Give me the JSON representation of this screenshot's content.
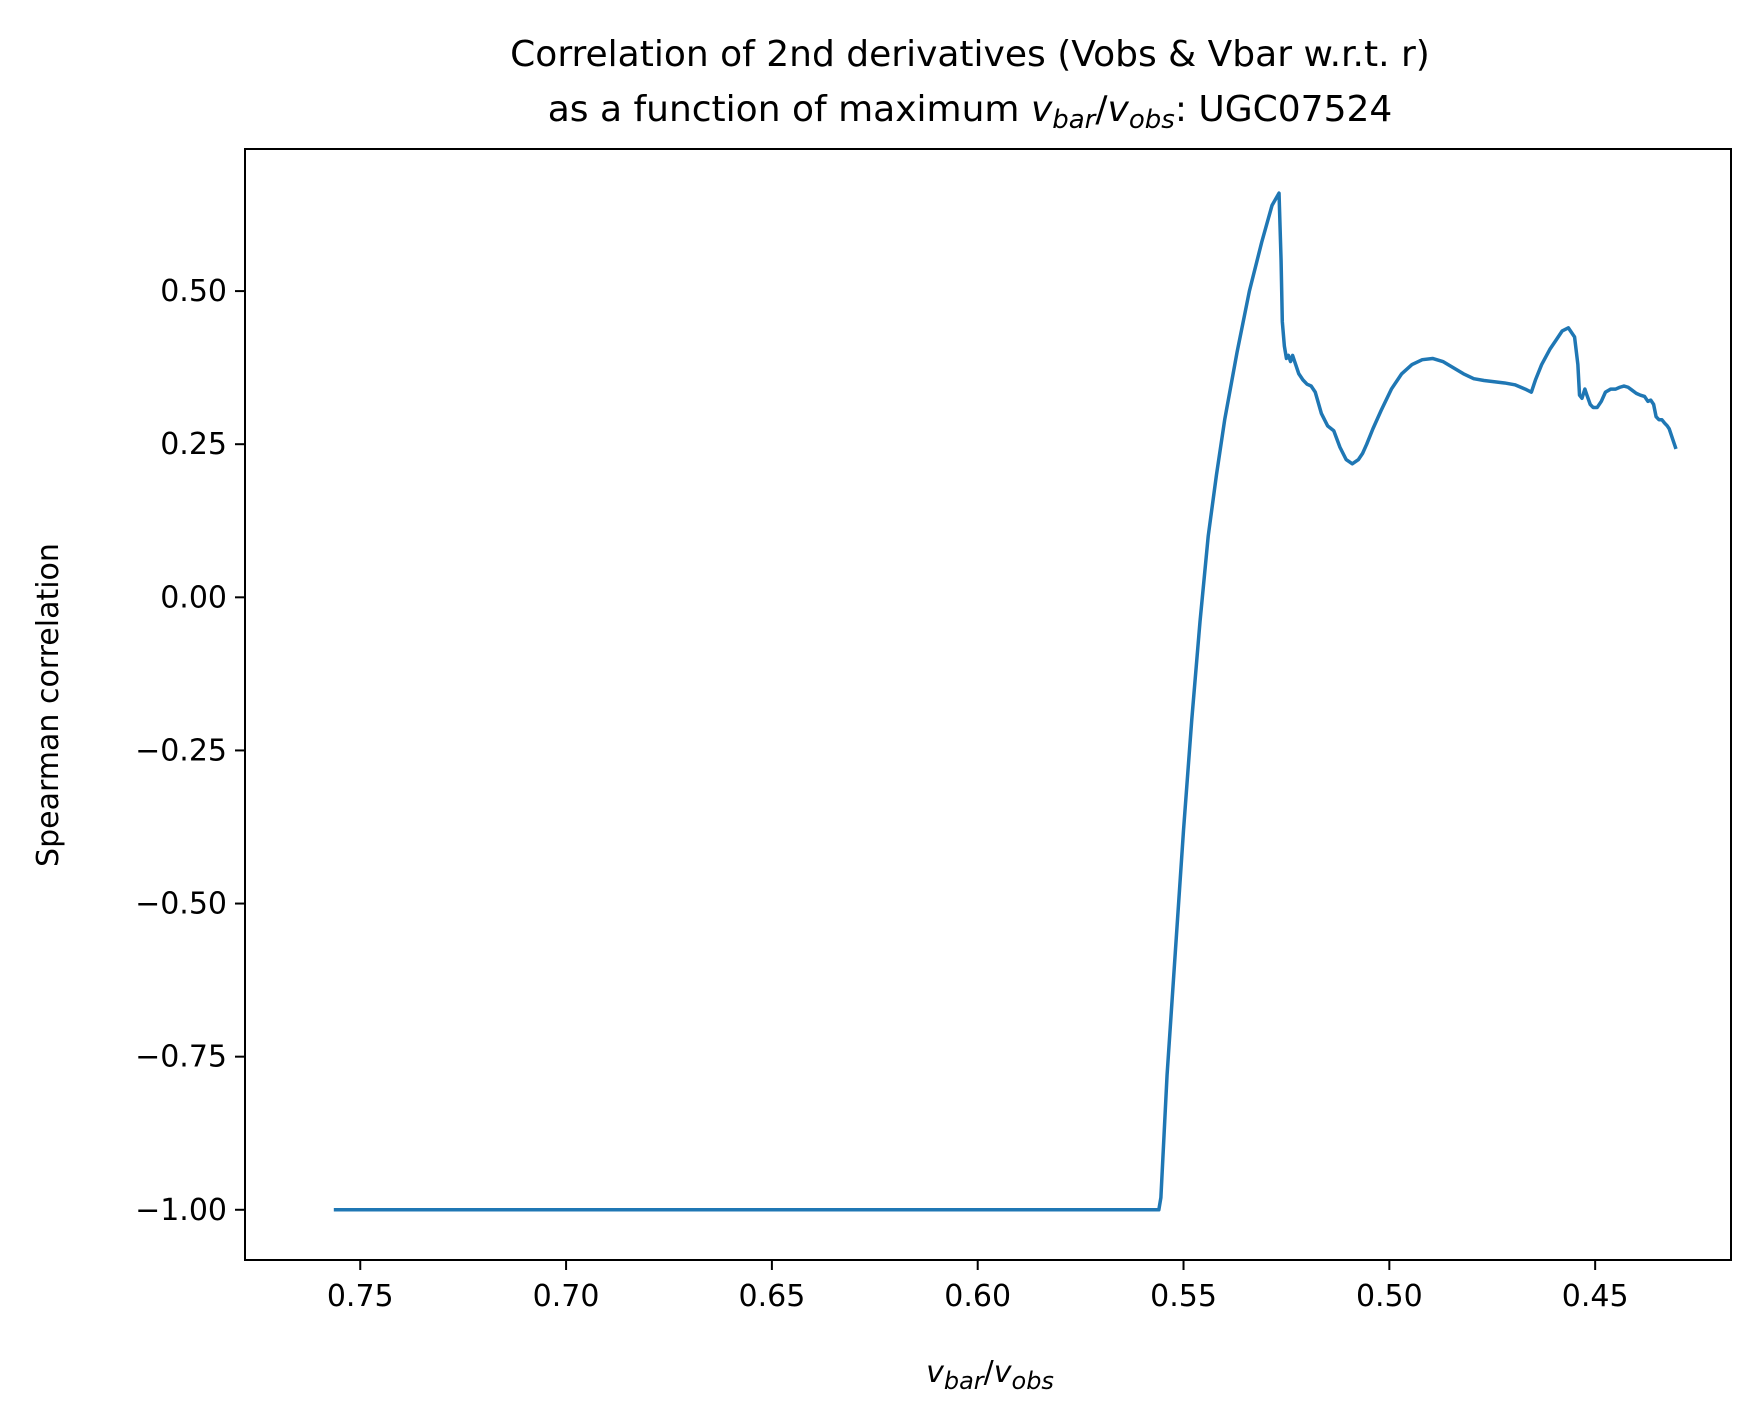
{
  "chart_data": {
    "type": "line",
    "title_line1": "Correlation of 2nd derivatives (Vobs & Vbar w.r.t. r)",
    "title_line2_prefix": "as a function of maximum ",
    "title_line2_suffix": ": UGC07524",
    "xlabel": "v_bar/v_obs",
    "ylabel": "Spearman correlation",
    "xlim": [
      0.778,
      0.417
    ],
    "ylim": [
      -1.082,
      0.732
    ],
    "x_inverted": true,
    "grid": false,
    "line_color": "#1f77b4",
    "xticks": [
      0.75,
      0.7,
      0.65,
      0.6,
      0.55,
      0.5,
      0.45
    ],
    "xtick_labels": [
      "0.75",
      "0.70",
      "0.65",
      "0.60",
      "0.55",
      "0.50",
      "0.45"
    ],
    "yticks": [
      0.5,
      0.25,
      0.0,
      -0.25,
      -0.5,
      -0.75,
      -1.0
    ],
    "ytick_labels": [
      "0.50",
      "0.25",
      "0.00",
      "−0.25",
      "−0.50",
      "−0.75",
      "−1.00"
    ],
    "series": [
      {
        "x": [
          0.756,
          0.7,
          0.65,
          0.6,
          0.556,
          0.5555,
          0.554,
          0.552,
          0.55,
          0.548,
          0.546,
          0.544,
          0.542,
          0.54,
          0.537,
          0.534,
          0.531,
          0.5285,
          0.5268,
          0.5263,
          0.526,
          0.5255,
          0.525,
          0.5245,
          0.524,
          0.5235,
          0.523,
          0.522,
          0.521,
          0.52,
          0.519,
          0.518,
          0.5165,
          0.515,
          0.5135,
          0.512,
          0.5105,
          0.509,
          0.5075,
          0.5065,
          0.5055,
          0.504,
          0.502,
          0.4995,
          0.497,
          0.4945,
          0.492,
          0.4895,
          0.487,
          0.4845,
          0.482,
          0.4795,
          0.477,
          0.4745,
          0.472,
          0.4695,
          0.467,
          0.4655,
          0.4645,
          0.463,
          0.461,
          0.4595,
          0.458,
          0.4565,
          0.455,
          0.4542,
          0.4538,
          0.4532,
          0.4525,
          0.452,
          0.4512,
          0.4505,
          0.4495,
          0.4485,
          0.4475,
          0.4462,
          0.445,
          0.444,
          0.443,
          0.442,
          0.441,
          0.44,
          0.439,
          0.438,
          0.4372,
          0.4365,
          0.4358,
          0.4352,
          0.4345,
          0.4338,
          0.4332,
          0.4325,
          0.432,
          0.4315,
          0.431,
          0.4305
        ],
        "y": [
          -1.0,
          -1.0,
          -1.0,
          -1.0,
          -1.0,
          -0.98,
          -0.78,
          -0.58,
          -0.38,
          -0.2,
          -0.04,
          0.1,
          0.2,
          0.29,
          0.4,
          0.5,
          0.58,
          0.64,
          0.66,
          0.55,
          0.45,
          0.41,
          0.39,
          0.395,
          0.385,
          0.395,
          0.385,
          0.365,
          0.355,
          0.348,
          0.345,
          0.335,
          0.3,
          0.28,
          0.272,
          0.245,
          0.225,
          0.218,
          0.225,
          0.235,
          0.25,
          0.275,
          0.305,
          0.34,
          0.365,
          0.38,
          0.388,
          0.39,
          0.385,
          0.375,
          0.365,
          0.357,
          0.354,
          0.352,
          0.35,
          0.347,
          0.34,
          0.335,
          0.355,
          0.38,
          0.405,
          0.42,
          0.435,
          0.44,
          0.425,
          0.38,
          0.33,
          0.325,
          0.34,
          0.33,
          0.315,
          0.31,
          0.31,
          0.32,
          0.335,
          0.34,
          0.34,
          0.343,
          0.345,
          0.343,
          0.338,
          0.333,
          0.33,
          0.328,
          0.32,
          0.322,
          0.315,
          0.295,
          0.29,
          0.29,
          0.285,
          0.28,
          0.275,
          0.265,
          0.255,
          0.245
        ]
      }
    ]
  }
}
